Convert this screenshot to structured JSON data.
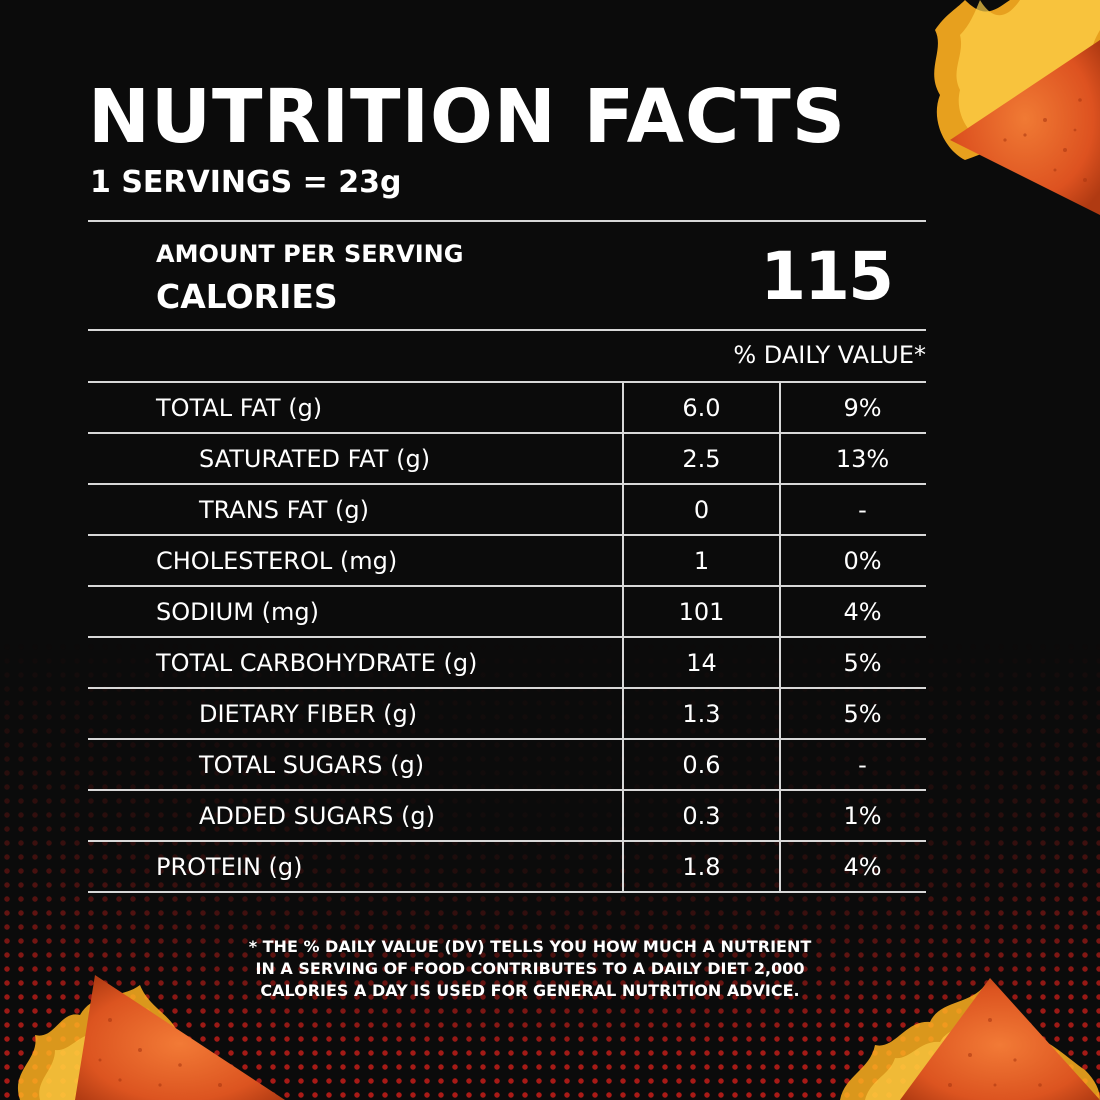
{
  "header": {
    "title": "NUTRITION FACTS",
    "serving": "1 SERVINGS = 23g"
  },
  "calories": {
    "amount_label": "AMOUNT PER SERVING",
    "label": "CALORIES",
    "value": "115"
  },
  "daily_value_header": "% DAILY VALUE*",
  "nutrients": [
    {
      "name": "TOTAL FAT (g)",
      "amount": "6.0",
      "dv": "9%"
    },
    {
      "name": "SATURATED FAT (g)",
      "amount": "2.5",
      "dv": "13%"
    },
    {
      "name": "TRANS FAT (g)",
      "amount": "0",
      "dv": "-"
    },
    {
      "name": "CHOLESTEROL (mg)",
      "amount": "1",
      "dv": "0%"
    },
    {
      "name": "SODIUM (mg)",
      "amount": "101",
      "dv": "4%"
    },
    {
      "name": "TOTAL CARBOHYDRATE (g)",
      "amount": "14",
      "dv": "5%"
    },
    {
      "name": "DIETARY FIBER (g)",
      "amount": "1.3",
      "dv": "5%"
    },
    {
      "name": "TOTAL SUGARS (g)",
      "amount": "0.6",
      "dv": "-"
    },
    {
      "name": "ADDED SUGARS (g)",
      "amount": "0.3",
      "dv": "1%"
    },
    {
      "name": "PROTEIN (g)",
      "amount": "1.8",
      "dv": "4%"
    }
  ],
  "footnote": {
    "line1": "* THE % DAILY VALUE (DV) TELLS YOU HOW MUCH A NUTRIENT",
    "line2": "IN A SERVING OF FOOD CONTRIBUTES TO A DAILY DIET 2,000",
    "line3": "CALORIES A DAY IS USED FOR GENERAL NUTRITION ADVICE."
  },
  "colors": {
    "background": "#0b0b0b",
    "text": "#ffffff",
    "rule": "#d8d8d8",
    "dot_pattern": "#c81e19",
    "chip": "#e8541f",
    "flame": "#ffb020"
  }
}
